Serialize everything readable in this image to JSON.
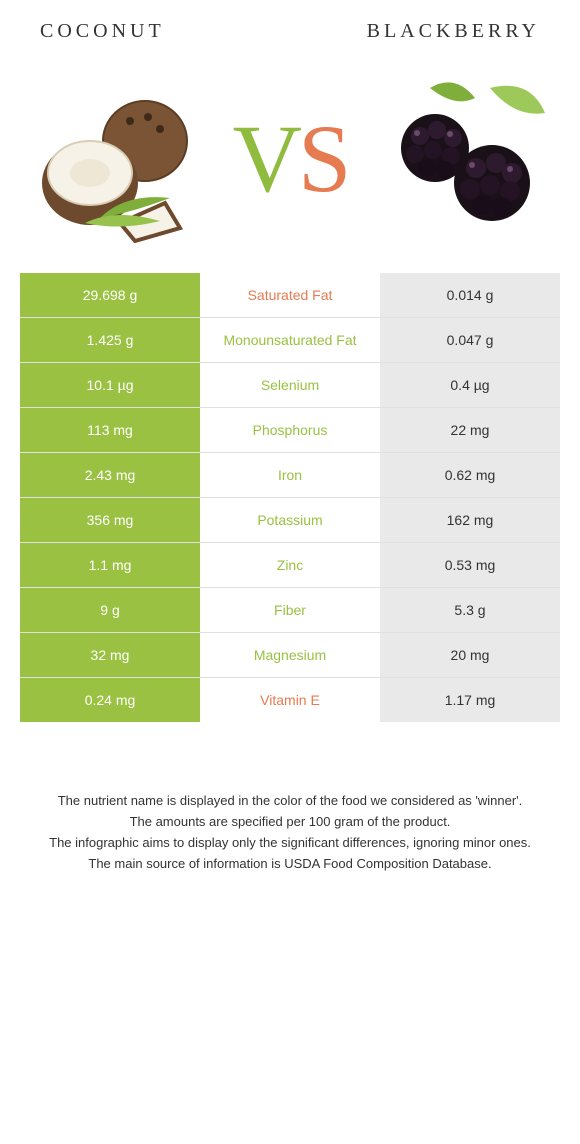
{
  "header": {
    "left_title": "Coconut",
    "right_title": "Blackberry"
  },
  "vs": {
    "v": "V",
    "s": "S"
  },
  "colors": {
    "left_bg": "#9ac142",
    "right_bg": "#e9e9e9",
    "left_win_text": "#9ac142",
    "right_win_text": "#e67a50",
    "white": "#ffffff",
    "row_border": "#e0e0e0"
  },
  "table": {
    "rows": [
      {
        "label": "Saturated Fat",
        "left": "29.698 g",
        "right": "0.014 g",
        "winner": "right"
      },
      {
        "label": "Monounsaturated Fat",
        "left": "1.425 g",
        "right": "0.047 g",
        "winner": "left"
      },
      {
        "label": "Selenium",
        "left": "10.1 µg",
        "right": "0.4 µg",
        "winner": "left"
      },
      {
        "label": "Phosphorus",
        "left": "113 mg",
        "right": "22 mg",
        "winner": "left"
      },
      {
        "label": "Iron",
        "left": "2.43 mg",
        "right": "0.62 mg",
        "winner": "left"
      },
      {
        "label": "Potassium",
        "left": "356 mg",
        "right": "162 mg",
        "winner": "left"
      },
      {
        "label": "Zinc",
        "left": "1.1 mg",
        "right": "0.53 mg",
        "winner": "left"
      },
      {
        "label": "Fiber",
        "left": "9 g",
        "right": "5.3 g",
        "winner": "left"
      },
      {
        "label": "Magnesium",
        "left": "32 mg",
        "right": "20 mg",
        "winner": "left"
      },
      {
        "label": "Vitamin E",
        "left": "0.24 mg",
        "right": "1.17 mg",
        "winner": "right"
      }
    ]
  },
  "footnotes": [
    "The nutrient name is displayed in the color of the food we considered as 'winner'.",
    "The amounts are specified per 100 gram of the product.",
    "The infographic aims to display only the significant differences, ignoring minor ones.",
    "The main source of information is USDA Food Composition Database."
  ]
}
